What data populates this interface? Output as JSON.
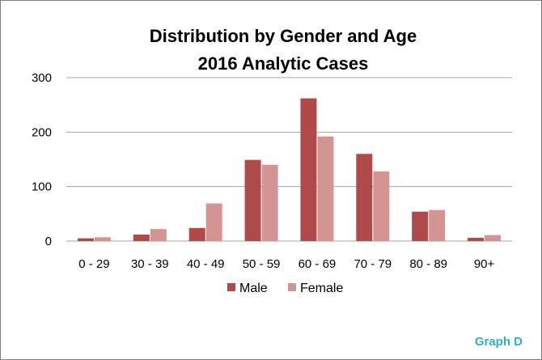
{
  "chart_data": {
    "type": "bar",
    "title": [
      "Distribution by Gender and Age",
      "2016 Analytic Cases"
    ],
    "categories": [
      "0 - 29",
      "30 - 39",
      "40 - 49",
      "50 - 59",
      "60 - 69",
      "70 - 79",
      "80 - 89",
      "90+"
    ],
    "series": [
      {
        "name": "Male",
        "values": [
          5,
          12,
          24,
          149,
          262,
          160,
          54,
          6
        ],
        "color": "#b04a4a"
      },
      {
        "name": "Female",
        "values": [
          7,
          22,
          69,
          140,
          192,
          128,
          57,
          11
        ],
        "color": "#d49592"
      }
    ],
    "ylim": [
      0,
      300
    ],
    "yticks": [
      0,
      100,
      200,
      300
    ],
    "grid": true,
    "legend": "bottom"
  },
  "footer": {
    "tag": "Graph D",
    "tag_color": "#2ab3c8"
  }
}
